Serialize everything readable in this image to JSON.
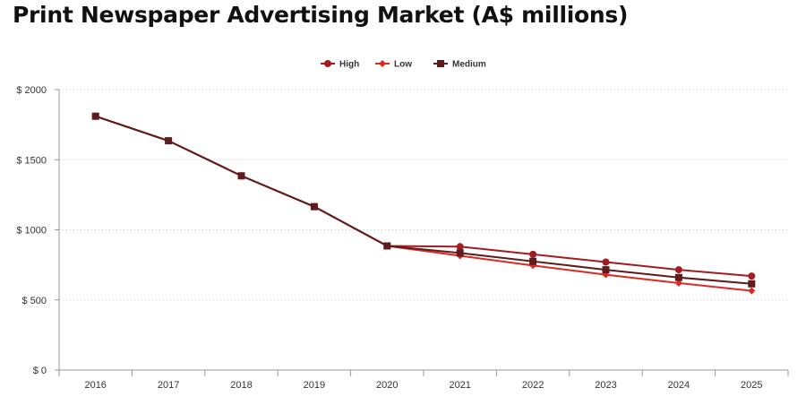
{
  "chart_data": {
    "type": "line",
    "title": "Print Newspaper Advertising Market (A$ millions)",
    "x": [
      "2016",
      "2017",
      "2018",
      "2019",
      "2020",
      "2021",
      "2022",
      "2023",
      "2024",
      "2025"
    ],
    "ylim": [
      0,
      2000
    ],
    "yticks": [
      0,
      500,
      1000,
      1500,
      2000
    ],
    "ytick_labels": [
      "$ 0",
      "$ 500",
      "$ 1000",
      "$ 1500",
      "$ 2000"
    ],
    "grid": "horizontal dotted",
    "legend_position": "top-center",
    "series": [
      {
        "name": "High",
        "color": "#a31c22",
        "marker": "circle",
        "values": [
          1810,
          1635,
          1385,
          1165,
          885,
          880,
          825,
          770,
          715,
          670
        ]
      },
      {
        "name": "Low",
        "color": "#dc2a22",
        "marker": "diamond",
        "values": [
          1810,
          1635,
          1385,
          1165,
          885,
          815,
          745,
          680,
          620,
          565
        ]
      },
      {
        "name": "Medium",
        "color": "#5e1c1c",
        "marker": "square",
        "values": [
          1810,
          1635,
          1385,
          1165,
          885,
          835,
          775,
          715,
          660,
          615
        ]
      }
    ]
  }
}
